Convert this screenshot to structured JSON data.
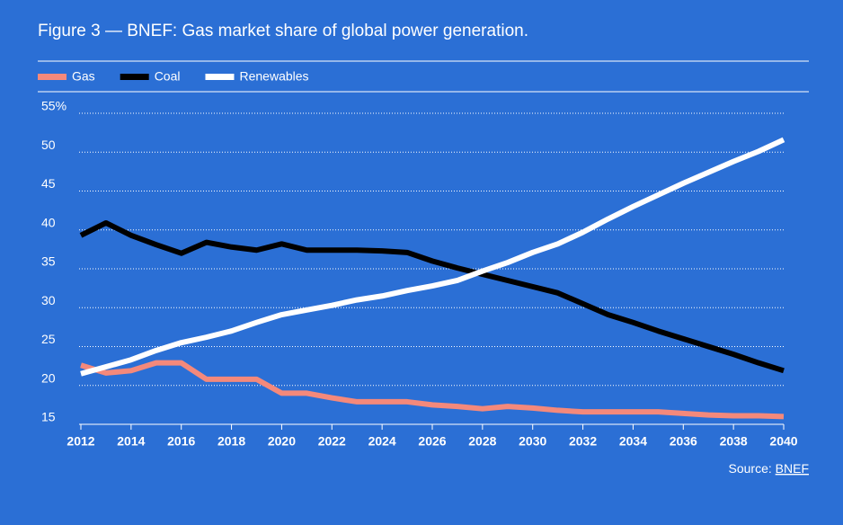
{
  "chart_data": {
    "type": "line",
    "title": "Figure 3 — BNEF: Gas market share of global power generation.",
    "x": [
      2012,
      2013,
      2014,
      2015,
      2016,
      2017,
      2018,
      2019,
      2020,
      2021,
      2022,
      2023,
      2024,
      2025,
      2026,
      2027,
      2028,
      2029,
      2030,
      2031,
      2032,
      2033,
      2034,
      2035,
      2036,
      2037,
      2038,
      2039,
      2040
    ],
    "series": [
      {
        "name": "Gas",
        "color": "#f4897b",
        "values": [
          22.6,
          21.6,
          21.9,
          22.9,
          22.9,
          20.8,
          20.8,
          20.8,
          19.0,
          19.0,
          18.4,
          17.9,
          17.9,
          17.9,
          17.5,
          17.3,
          17.0,
          17.3,
          17.1,
          16.8,
          16.6,
          16.6,
          16.6,
          16.6,
          16.4,
          16.2,
          16.1,
          16.1,
          16.0
        ]
      },
      {
        "name": "Coal",
        "color": "#000000",
        "values": [
          39.3,
          40.9,
          39.3,
          38.1,
          37.0,
          38.4,
          37.8,
          37.4,
          38.2,
          37.4,
          37.4,
          37.4,
          37.3,
          37.1,
          36.0,
          35.1,
          34.3,
          33.5,
          32.7,
          31.9,
          30.5,
          29.1,
          28.1,
          27.0,
          26.0,
          25.0,
          24.0,
          22.9,
          21.9
        ]
      },
      {
        "name": "Renewables",
        "color": "#ffffff",
        "values": [
          21.5,
          22.4,
          23.3,
          24.5,
          25.5,
          26.2,
          27.0,
          28.1,
          29.1,
          29.7,
          30.3,
          31.0,
          31.5,
          32.2,
          32.8,
          33.5,
          34.7,
          35.8,
          37.1,
          38.2,
          39.7,
          41.4,
          43.0,
          44.5,
          46.0,
          47.4,
          48.8,
          50.1,
          51.6
        ]
      }
    ],
    "xlim": [
      2012,
      2040
    ],
    "xticks": [
      2012,
      2014,
      2016,
      2018,
      2020,
      2022,
      2024,
      2026,
      2028,
      2030,
      2032,
      2034,
      2036,
      2038,
      2040
    ],
    "ylim": [
      15,
      55
    ],
    "yticks": [
      15,
      20,
      25,
      30,
      35,
      40,
      45,
      50,
      {
        "value": 55,
        "label": "55%"
      }
    ],
    "grid": true,
    "source": {
      "text": "Source:",
      "link": "BNEF"
    }
  }
}
